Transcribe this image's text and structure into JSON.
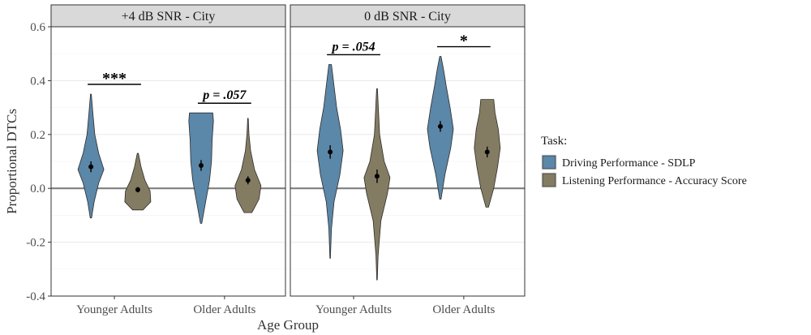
{
  "chart_data": {
    "type": "violin",
    "xlabel": "Age Group",
    "ylabel": "Proportional DTCs",
    "ylim": [
      -0.4,
      0.6
    ],
    "yticks": [
      -0.4,
      -0.2,
      0.0,
      0.2,
      0.4,
      0.6
    ],
    "ytick_labels": [
      "-0.4",
      "-0.2",
      "0.0",
      "0.2",
      "0.4",
      "0.6"
    ],
    "grid": true,
    "reference_line": 0.0,
    "legend": {
      "title": "Task:",
      "placement": "right",
      "entries": [
        {
          "label": "Driving Performance - SDLP",
          "color": "#5b87a8"
        },
        {
          "label": "Listening Performance - Accuracy Score",
          "color": "#847c62"
        }
      ]
    },
    "panels": [
      {
        "title": "+4 dB SNR  - City",
        "categories": [
          "Younger Adults",
          "Older Adults"
        ],
        "groups": [
          {
            "category": "Younger Adults",
            "violins": [
              {
                "task": "Driving Performance - SDLP",
                "min": -0.11,
                "max": 0.35,
                "mean": 0.08,
                "ci": [
                  0.06,
                  0.1
                ],
                "profile": [
                  [
                    -0.11,
                    0.05
                  ],
                  [
                    -0.05,
                    0.25
                  ],
                  [
                    0.02,
                    0.6
                  ],
                  [
                    0.07,
                    1.0
                  ],
                  [
                    0.13,
                    0.6
                  ],
                  [
                    0.2,
                    0.3
                  ],
                  [
                    0.28,
                    0.15
                  ],
                  [
                    0.35,
                    0.03
                  ]
                ]
              },
              {
                "task": "Listening Performance - Accuracy Score",
                "min": -0.08,
                "max": 0.13,
                "mean": -0.005,
                "ci": [
                  -0.015,
                  0.005
                ],
                "profile": [
                  [
                    -0.08,
                    0.4
                  ],
                  [
                    -0.05,
                    1.0
                  ],
                  [
                    -0.01,
                    0.95
                  ],
                  [
                    0.03,
                    0.55
                  ],
                  [
                    0.08,
                    0.25
                  ],
                  [
                    0.13,
                    0.04
                  ]
                ]
              }
            ],
            "significance": "***"
          },
          {
            "category": "Older Adults",
            "violins": [
              {
                "task": "Driving Performance - SDLP",
                "min": -0.13,
                "max": 0.28,
                "mean": 0.085,
                "ci": [
                  0.065,
                  0.105
                ],
                "profile": [
                  [
                    -0.13,
                    0.05
                  ],
                  [
                    -0.05,
                    0.35
                  ],
                  [
                    0.03,
                    0.65
                  ],
                  [
                    0.1,
                    0.8
                  ],
                  [
                    0.18,
                    0.85
                  ],
                  [
                    0.25,
                    0.95
                  ],
                  [
                    0.28,
                    0.9
                  ]
                ]
              },
              {
                "task": "Listening Performance - Accuracy Score",
                "min": -0.09,
                "max": 0.26,
                "mean": 0.03,
                "ci": [
                  0.015,
                  0.045
                ],
                "profile": [
                  [
                    -0.09,
                    0.3
                  ],
                  [
                    -0.04,
                    0.85
                  ],
                  [
                    0.01,
                    1.0
                  ],
                  [
                    0.07,
                    0.5
                  ],
                  [
                    0.14,
                    0.2
                  ],
                  [
                    0.2,
                    0.08
                  ],
                  [
                    0.26,
                    0.02
                  ]
                ]
              }
            ],
            "significance": "p = .057"
          }
        ]
      },
      {
        "title": "0 dB SNR  - City",
        "categories": [
          "Younger Adults",
          "Older Adults"
        ],
        "groups": [
          {
            "category": "Younger Adults",
            "violins": [
              {
                "task": "Driving Performance - SDLP",
                "min": -0.26,
                "max": 0.46,
                "mean": 0.135,
                "ci": [
                  0.11,
                  0.16
                ],
                "profile": [
                  [
                    -0.26,
                    0.02
                  ],
                  [
                    -0.15,
                    0.1
                  ],
                  [
                    -0.05,
                    0.3
                  ],
                  [
                    0.05,
                    0.75
                  ],
                  [
                    0.14,
                    1.0
                  ],
                  [
                    0.22,
                    0.8
                  ],
                  [
                    0.3,
                    0.5
                  ],
                  [
                    0.38,
                    0.3
                  ],
                  [
                    0.46,
                    0.1
                  ]
                ]
              },
              {
                "task": "Listening Performance - Accuracy Score",
                "min": -0.34,
                "max": 0.37,
                "mean": 0.045,
                "ci": [
                  0.02,
                  0.07
                ],
                "profile": [
                  [
                    -0.34,
                    0.02
                  ],
                  [
                    -0.25,
                    0.08
                  ],
                  [
                    -0.12,
                    0.3
                  ],
                  [
                    -0.02,
                    0.8
                  ],
                  [
                    0.04,
                    1.0
                  ],
                  [
                    0.1,
                    0.55
                  ],
                  [
                    0.2,
                    0.2
                  ],
                  [
                    0.3,
                    0.1
                  ],
                  [
                    0.37,
                    0.03
                  ]
                ]
              }
            ],
            "significance": "p = .054"
          },
          {
            "category": "Older Adults",
            "violins": [
              {
                "task": "Driving Performance - SDLP",
                "min": -0.04,
                "max": 0.49,
                "mean": 0.23,
                "ci": [
                  0.21,
                  0.25
                ],
                "profile": [
                  [
                    -0.04,
                    0.05
                  ],
                  [
                    0.05,
                    0.35
                  ],
                  [
                    0.15,
                    0.8
                  ],
                  [
                    0.22,
                    1.0
                  ],
                  [
                    0.3,
                    0.75
                  ],
                  [
                    0.38,
                    0.45
                  ],
                  [
                    0.44,
                    0.25
                  ],
                  [
                    0.49,
                    0.05
                  ]
                ]
              },
              {
                "task": "Listening Performance - Accuracy Score",
                "min": -0.07,
                "max": 0.33,
                "mean": 0.135,
                "ci": [
                  0.115,
                  0.155
                ],
                "profile": [
                  [
                    -0.07,
                    0.1
                  ],
                  [
                    0.0,
                    0.5
                  ],
                  [
                    0.08,
                    0.8
                  ],
                  [
                    0.15,
                    1.0
                  ],
                  [
                    0.22,
                    0.85
                  ],
                  [
                    0.28,
                    0.6
                  ],
                  [
                    0.33,
                    0.5
                  ]
                ]
              }
            ],
            "significance": "*"
          }
        ]
      }
    ]
  }
}
